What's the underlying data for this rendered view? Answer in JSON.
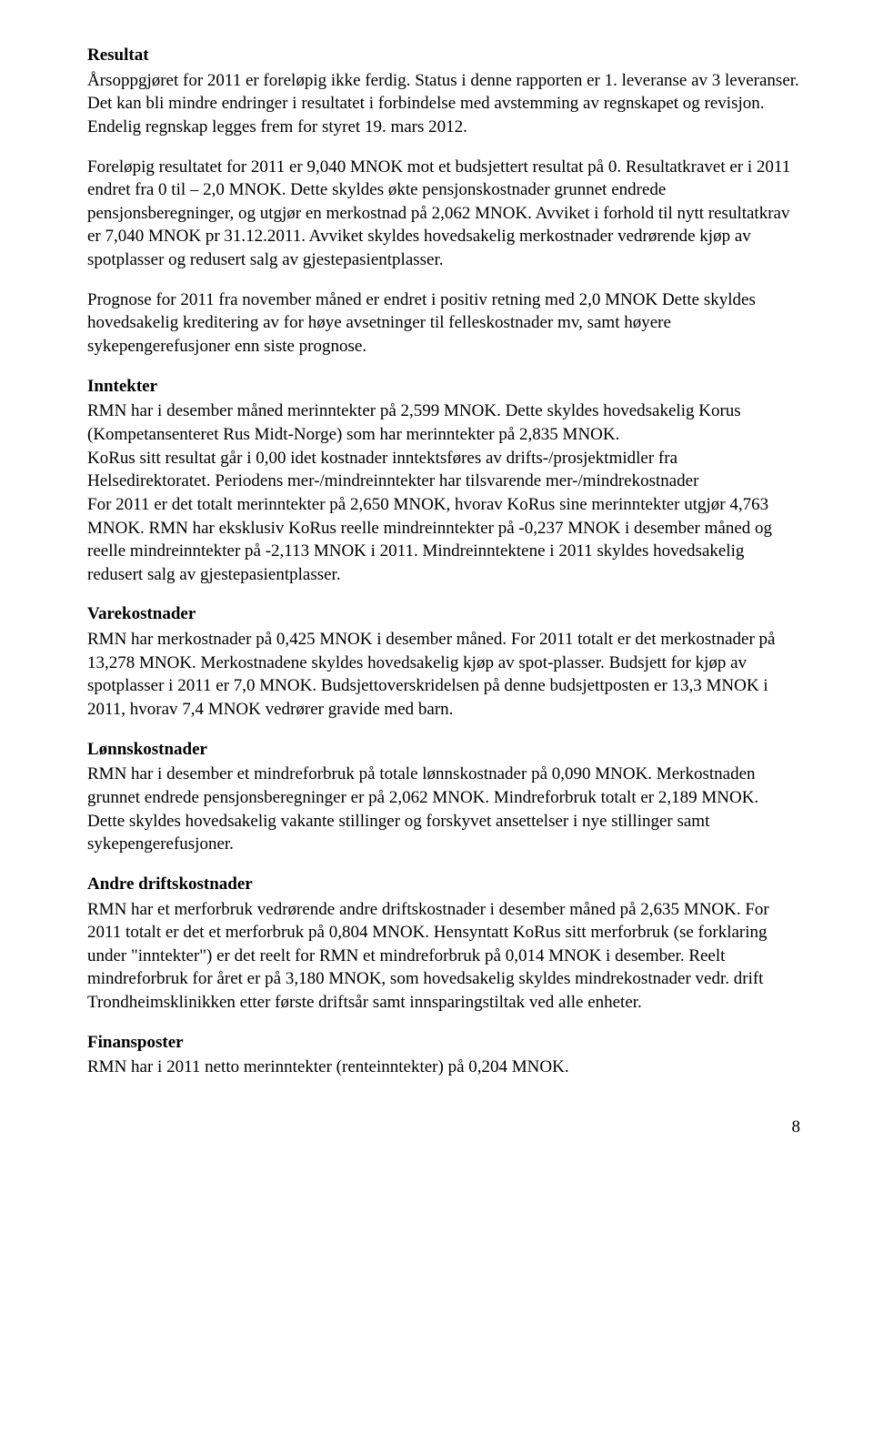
{
  "sections": {
    "resultat": {
      "title": "Resultat",
      "p1": "Årsoppgjøret for 2011 er foreløpig ikke ferdig. Status i denne rapporten er 1. leveranse av 3 leveranser. Det kan bli mindre endringer i resultatet i forbindelse med avstemming av regnskapet og revisjon. Endelig regnskap legges frem for styret 19. mars 2012.",
      "p2": "Foreløpig resultatet for 2011 er 9,040 MNOK mot et budsjettert resultat på 0. Resultatkravet er i 2011 endret fra 0 til – 2,0 MNOK. Dette skyldes økte pensjonskostnader grunnet endrede pensjonsberegninger, og utgjør en merkostnad på 2,062 MNOK. Avviket i forhold til nytt resultatkrav er 7,040 MNOK pr 31.12.2011. Avviket skyldes hovedsakelig merkostnader vedrørende kjøp av spotplasser og redusert salg av gjestepasientplasser.",
      "p3": "Prognose for 2011 fra november måned er endret i positiv retning med 2,0 MNOK Dette skyldes hovedsakelig kreditering av for høye avsetninger til felleskostnader mv, samt høyere sykepengerefusjoner enn siste prognose."
    },
    "inntekter": {
      "title": "Inntekter",
      "p1": "RMN har i desember måned merinntekter på 2,599 MNOK. Dette skyldes hovedsakelig Korus (Kompetansenteret Rus Midt-Norge) som har merinntekter på 2,835 MNOK.",
      "p2": "KoRus sitt resultat går i 0,00 idet kostnader inntektsføres av drifts-/prosjektmidler fra Helsedirektoratet. Periodens mer-/mindreinntekter har tilsvarende mer-/mindrekostnader",
      "p3": "For 2011 er det totalt merinntekter på 2,650 MNOK, hvorav KoRus sine merinntekter utgjør 4,763 MNOK. RMN har eksklusiv KoRus reelle mindreinntekter på -0,237 MNOK i desember måned og reelle mindreinntekter på -2,113 MNOK i 2011. Mindreinntektene i 2011 skyldes hovedsakelig redusert salg av gjestepasientplasser."
    },
    "varekostnader": {
      "title": "Varekostnader",
      "p1": "RMN har merkostnader på 0,425 MNOK i desember måned. For 2011 totalt er det merkostnader på 13,278 MNOK. Merkostnadene skyldes hovedsakelig kjøp av spot-plasser. Budsjett for kjøp av spotplasser i 2011 er 7,0 MNOK.  Budsjettoverskridelsen på denne budsjettposten er 13,3 MNOK i 2011, hvorav 7,4 MNOK vedrører gravide med barn."
    },
    "lonnskostnader": {
      "title": "Lønnskostnader",
      "p1": "RMN har i desember et mindreforbruk på totale lønnskostnader på 0,090 MNOK. Merkostnaden grunnet endrede pensjonsberegninger er  på 2,062 MNOK. Mindreforbruk totalt er 2,189 MNOK. Dette skyldes hovedsakelig vakante stillinger og forskyvet ansettelser i nye stillinger samt sykepengerefusjoner."
    },
    "andre": {
      "title": "Andre driftskostnader",
      "p1": "RMN har et merforbruk vedrørende andre driftskostnader i desember måned på 2,635 MNOK. For 2011 totalt er det et merforbruk på 0,804 MNOK. Hensyntatt KoRus sitt merforbruk (se forklaring under \"inntekter\") er det reelt for RMN et mindreforbruk på 0,014 MNOK i desember. Reelt mindreforbruk for året er på 3,180 MNOK, som hovedsakelig skyldes mindrekostnader vedr. drift Trondheimsklinikken etter første driftsår samt innsparingstiltak ved alle enheter."
    },
    "finansposter": {
      "title": "Finansposter",
      "p1": "RMN har i 2011 netto merinntekter (renteinntekter) på 0,204 MNOK."
    }
  },
  "page_number": "8"
}
